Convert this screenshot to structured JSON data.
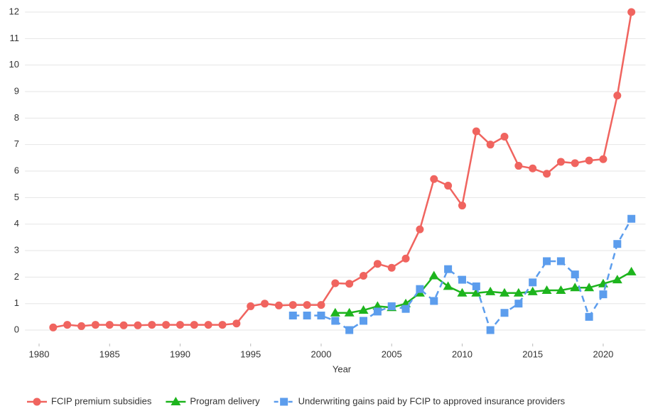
{
  "chart_data": {
    "type": "line",
    "x_label": "Year",
    "xlim": [
      1979,
      2023
    ],
    "xticks": [
      1980,
      1985,
      1990,
      1995,
      2000,
      2005,
      2010,
      2015,
      2020
    ],
    "ylim": [
      -0.5,
      12.3
    ],
    "yticks": [
      0,
      1,
      2,
      3,
      4,
      5,
      6,
      7,
      8,
      9,
      10,
      11,
      12
    ],
    "grid": true,
    "legend": "bottom",
    "series": [
      {
        "name": "FCIP premium subsidies",
        "color": "#f0645f",
        "marker": "circle",
        "dashed": false,
        "x": [
          1981,
          1982,
          1983,
          1984,
          1985,
          1986,
          1987,
          1988,
          1989,
          1990,
          1991,
          1992,
          1993,
          1994,
          1995,
          1996,
          1997,
          1998,
          1999,
          2000,
          2001,
          2002,
          2003,
          2004,
          2005,
          2006,
          2007,
          2008,
          2009,
          2010,
          2011,
          2012,
          2013,
          2014,
          2015,
          2016,
          2017,
          2018,
          2019,
          2020,
          2021,
          2022
        ],
        "values": [
          0.1,
          0.2,
          0.15,
          0.2,
          0.2,
          0.18,
          0.18,
          0.2,
          0.2,
          0.2,
          0.2,
          0.2,
          0.2,
          0.25,
          0.9,
          1.0,
          0.93,
          0.95,
          0.95,
          0.95,
          1.77,
          1.75,
          2.05,
          2.5,
          2.35,
          2.7,
          3.8,
          5.7,
          5.45,
          4.7,
          7.5,
          7.0,
          7.3,
          6.2,
          6.1,
          5.9,
          6.35,
          6.3,
          6.4,
          6.45,
          8.85,
          12.0
        ]
      },
      {
        "name": "Program delivery",
        "color": "#1db41d",
        "marker": "triangle",
        "dashed": false,
        "x": [
          2001,
          2002,
          2003,
          2004,
          2005,
          2006,
          2007,
          2008,
          2009,
          2010,
          2011,
          2012,
          2013,
          2014,
          2015,
          2016,
          2017,
          2018,
          2019,
          2020,
          2021,
          2022
        ],
        "values": [
          0.65,
          0.65,
          0.75,
          0.9,
          0.85,
          1.0,
          1.4,
          2.05,
          1.65,
          1.4,
          1.4,
          1.45,
          1.4,
          1.4,
          1.45,
          1.5,
          1.5,
          1.6,
          1.6,
          1.75,
          1.9,
          2.2
        ]
      },
      {
        "name": "Underwriting gains paid by FCIP to approved insurance providers",
        "color": "#5c9ded",
        "marker": "square",
        "dashed": true,
        "x": [
          1998,
          1999,
          2000,
          2001,
          2002,
          2003,
          2004,
          2005,
          2006,
          2007,
          2008,
          2009,
          2010,
          2011,
          2012,
          2013,
          2014,
          2015,
          2016,
          2017,
          2018,
          2019,
          2020,
          2021,
          2022
        ],
        "values": [
          0.55,
          0.55,
          0.55,
          0.35,
          0.0,
          0.35,
          0.7,
          0.9,
          0.8,
          1.55,
          1.1,
          2.3,
          1.9,
          1.65,
          0.0,
          0.65,
          1.0,
          1.8,
          2.6,
          2.6,
          2.1,
          0.5,
          1.35,
          3.25,
          4.2
        ]
      }
    ]
  }
}
